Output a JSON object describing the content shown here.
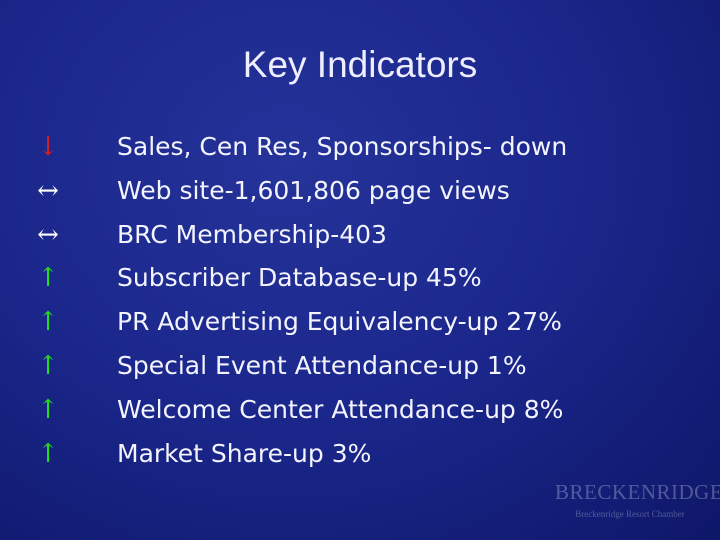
{
  "title": "Key Indicators",
  "items": [
    {
      "arrow": "↓",
      "color": "#d42020",
      "text": "Sales, Cen Res, Sponsorships- down"
    },
    {
      "arrow": "↔",
      "color": "#ffffff",
      "text": "Web site-1,601,806 page views"
    },
    {
      "arrow": "↔",
      "color": "#ffffff",
      "text": "BRC Membership-403"
    },
    {
      "arrow": "↑",
      "color": "#22dd22",
      "text": "Subscriber Database-up 45%"
    },
    {
      "arrow": "↑",
      "color": "#22dd22",
      "text": "PR Advertising Equivalency-up 27%"
    },
    {
      "arrow": "↑",
      "color": "#22dd22",
      "text": "Special Event Attendance-up 1%"
    },
    {
      "arrow": "↑",
      "color": "#22dd22",
      "text": "Welcome Center Attendance-up 8%"
    },
    {
      "arrow": "↑",
      "color": "#22dd22",
      "text": "Market Share-up 3%"
    }
  ],
  "logo": {
    "name": "BRECKENRIDGE",
    "caption": "Breckenridge Resort Chamber"
  }
}
